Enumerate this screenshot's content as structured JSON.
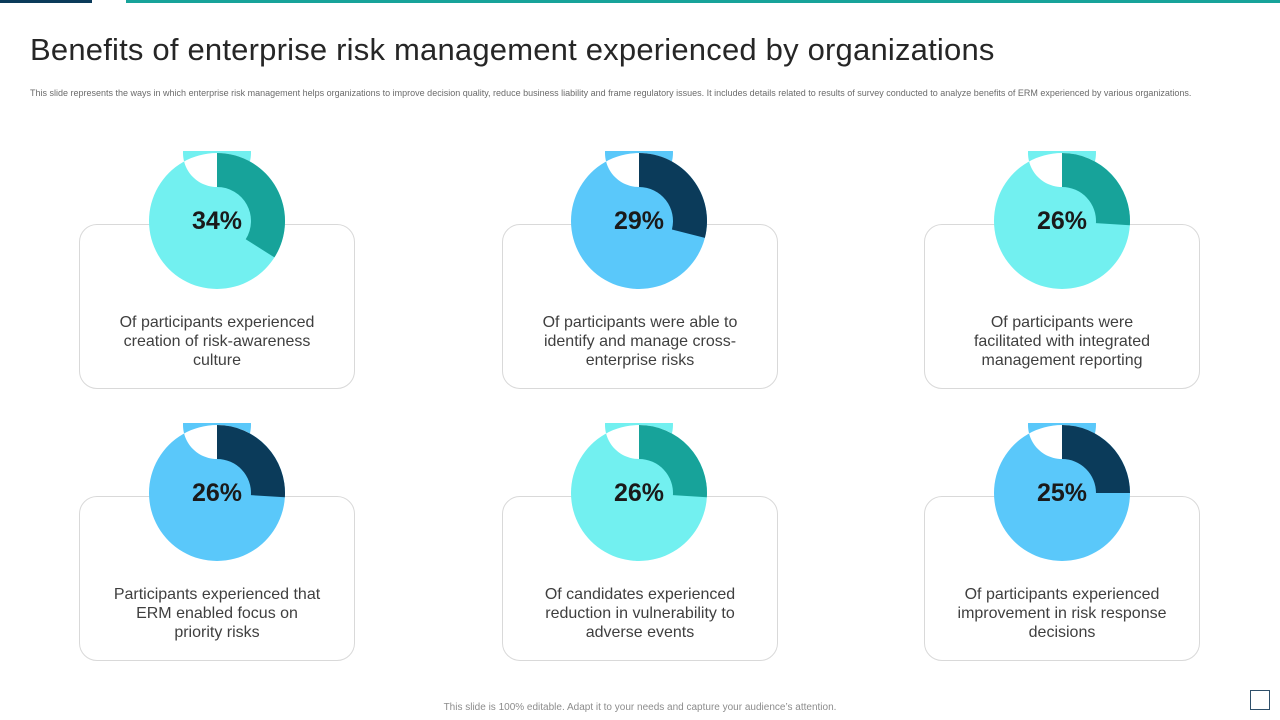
{
  "title": "Benefits of enterprise risk management experienced by organizations",
  "subtitle": "This slide represents the ways in which enterprise risk management helps organizations to improve decision quality, reduce business liability and frame regulatory issues. It includes details related to results of survey conducted to analyze benefits of ERM experienced by various organizations.",
  "footer": "This slide is 100% editable. Adapt it to your needs and capture your audience’s attention.",
  "chart_data": [
    {
      "type": "pie",
      "label": "34%",
      "value": 34,
      "description": "Of participants experienced creation of risk-awareness culture",
      "highlight_color": "#17a39a",
      "base_color": "#72f0f0"
    },
    {
      "type": "pie",
      "label": "29%",
      "value": 29,
      "description": "Of participants were able to identify and manage cross-enterprise risks",
      "highlight_color": "#0b3b5a",
      "base_color": "#5ac8fa"
    },
    {
      "type": "pie",
      "label": "26%",
      "value": 26,
      "description": "Of participants were facilitated with integrated management reporting",
      "highlight_color": "#17a39a",
      "base_color": "#72f0f0"
    },
    {
      "type": "pie",
      "label": "26%",
      "value": 26,
      "description": "Participants experienced that ERM enabled focus on priority risks",
      "highlight_color": "#0b3b5a",
      "base_color": "#5ac8fa"
    },
    {
      "type": "pie",
      "label": "26%",
      "value": 26,
      "description": "Of candidates experienced reduction in vulnerability to adverse events",
      "highlight_color": "#17a39a",
      "base_color": "#72f0f0"
    },
    {
      "type": "pie",
      "label": "25%",
      "value": 25,
      "description": "Of participants experienced improvement in risk response decisions",
      "highlight_color": "#0b3b5a",
      "base_color": "#5ac8fa"
    }
  ]
}
